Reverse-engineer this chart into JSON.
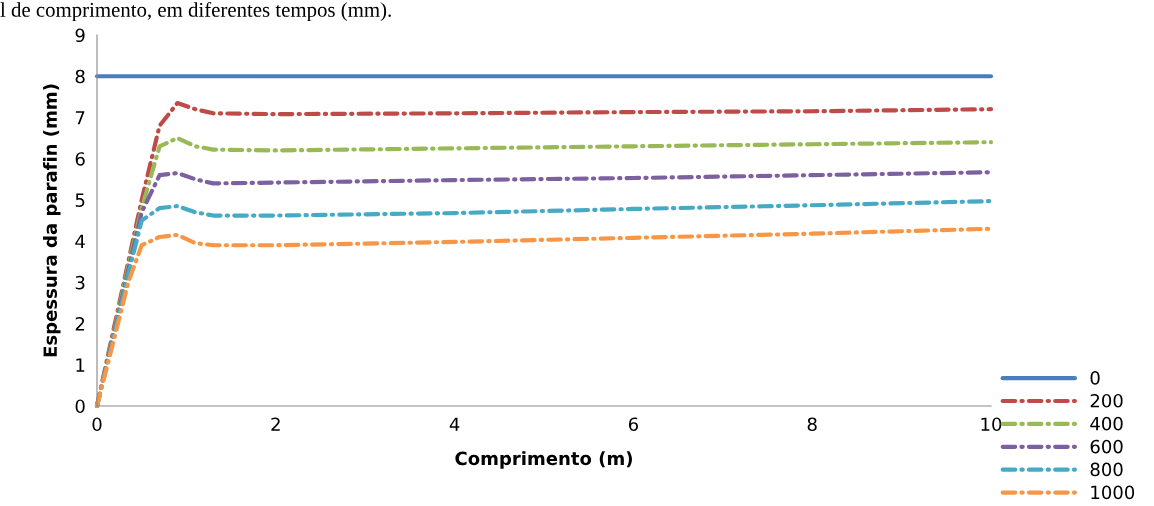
{
  "chart_data": {
    "type": "line",
    "title": "l de comprimento, em diferentes tempos (mm).",
    "xlabel": "Comprimento (m)",
    "ylabel": "Espessura da parafin (mm)",
    "x": [
      0,
      0.1,
      0.2,
      0.35,
      0.5,
      0.7,
      0.9,
      1.1,
      1.3,
      2,
      4,
      6,
      8,
      10
    ],
    "xlim": [
      0,
      10
    ],
    "xticks": [
      0,
      2,
      4,
      6,
      8,
      10
    ],
    "ylim": [
      0,
      9
    ],
    "yticks": [
      0,
      1,
      2,
      3,
      4,
      5,
      6,
      7,
      8,
      9
    ],
    "grid": false,
    "legend": "bottom right",
    "marker": "none",
    "series": [
      {
        "name": "0",
        "color": "#4a7ebb",
        "line_style": "solid",
        "x": [
          0,
          10
        ],
        "values": [
          8,
          8
        ]
      },
      {
        "name": "200",
        "color": "#be4b48",
        "line_style": "dashed",
        "values": [
          0,
          1,
          2,
          3.5,
          5,
          6.8,
          7.35,
          7.2,
          7.1,
          7.08,
          7.1,
          7.13,
          7.15,
          7.2
        ]
      },
      {
        "name": "400",
        "color": "#98b954",
        "line_style": "dashed",
        "values": [
          0,
          0.95,
          1.9,
          3.4,
          4.8,
          6.3,
          6.5,
          6.3,
          6.22,
          6.2,
          6.25,
          6.3,
          6.35,
          6.4
        ]
      },
      {
        "name": "600",
        "color": "#7d60a0",
        "line_style": "dashed",
        "values": [
          0,
          0.95,
          1.85,
          3.3,
          4.7,
          5.6,
          5.65,
          5.5,
          5.4,
          5.42,
          5.48,
          5.53,
          5.6,
          5.67
        ]
      },
      {
        "name": "800",
        "color": "#46aac5",
        "line_style": "dashed",
        "values": [
          0,
          0.9,
          1.8,
          3.2,
          4.5,
          4.8,
          4.85,
          4.7,
          4.62,
          4.62,
          4.68,
          4.78,
          4.87,
          4.97
        ]
      },
      {
        "name": "1000",
        "color": "#f79646",
        "line_style": "dashed",
        "values": [
          0,
          0.85,
          1.7,
          3.0,
          3.9,
          4.1,
          4.15,
          3.95,
          3.9,
          3.9,
          3.98,
          4.08,
          4.18,
          4.3
        ]
      }
    ]
  }
}
